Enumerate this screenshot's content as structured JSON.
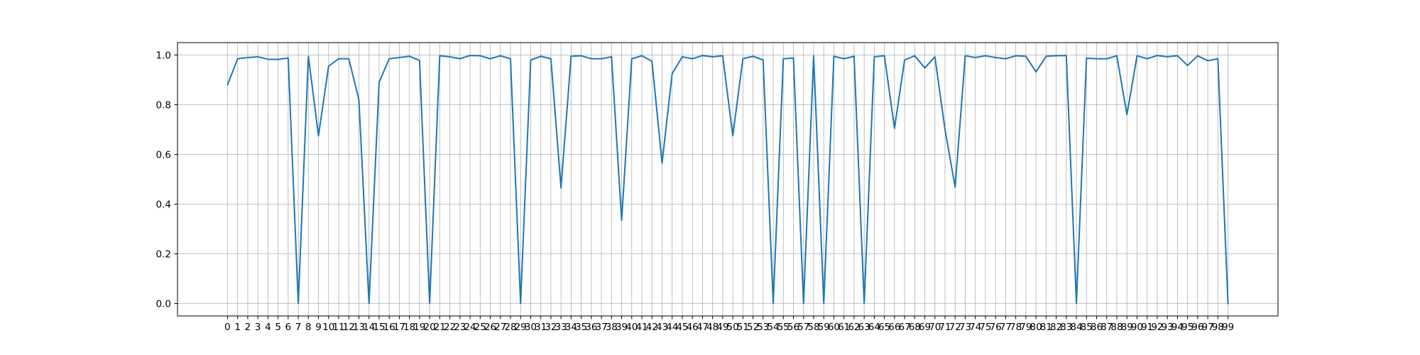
{
  "chart_data": {
    "type": "line",
    "title": "",
    "xlabel": "",
    "ylabel": "",
    "grid": true,
    "xlim": [
      -4.95,
      103.95
    ],
    "ylim": [
      -0.05,
      1.05
    ],
    "x": [
      0,
      1,
      2,
      3,
      4,
      5,
      6,
      7,
      8,
      9,
      10,
      11,
      12,
      13,
      14,
      15,
      16,
      17,
      18,
      19,
      20,
      21,
      22,
      23,
      24,
      25,
      26,
      27,
      28,
      29,
      30,
      31,
      32,
      33,
      34,
      35,
      36,
      37,
      38,
      39,
      40,
      41,
      42,
      43,
      44,
      45,
      46,
      47,
      48,
      49,
      50,
      51,
      52,
      53,
      54,
      55,
      56,
      57,
      58,
      59,
      60,
      61,
      62,
      63,
      64,
      65,
      66,
      67,
      68,
      69,
      70,
      71,
      72,
      73,
      74,
      75,
      76,
      77,
      78,
      79,
      80,
      81,
      82,
      83,
      84,
      85,
      86,
      87,
      88,
      89,
      90,
      91,
      92,
      93,
      94,
      95,
      96,
      97,
      98,
      99
    ],
    "x_tick_labels": [
      "0",
      "1",
      "2",
      "3",
      "4",
      "5",
      "6",
      "7",
      "8",
      "9",
      "10",
      "11",
      "12",
      "13",
      "14",
      "15",
      "16",
      "17",
      "18",
      "19",
      "20",
      "21",
      "22",
      "23",
      "24",
      "25",
      "26",
      "27",
      "28",
      "29",
      "30",
      "31",
      "32",
      "33",
      "34",
      "35",
      "36",
      "37",
      "38",
      "39",
      "40",
      "41",
      "42",
      "43",
      "44",
      "45",
      "46",
      "47",
      "48",
      "49",
      "50",
      "51",
      "52",
      "53",
      "54",
      "55",
      "56",
      "57",
      "58",
      "59",
      "60",
      "61",
      "62",
      "63",
      "64",
      "65",
      "66",
      "67",
      "68",
      "69",
      "70",
      "71",
      "72",
      "73",
      "74",
      "75",
      "76",
      "77",
      "78",
      "79",
      "80",
      "81",
      "82",
      "83",
      "84",
      "85",
      "86",
      "87",
      "88",
      "89",
      "90",
      "91",
      "92",
      "93",
      "94",
      "95",
      "96",
      "97",
      "98",
      "99"
    ],
    "y_ticks": [
      0.0,
      0.2,
      0.4,
      0.6,
      0.8,
      1.0
    ],
    "y_tick_labels": [
      "0.0",
      "0.2",
      "0.4",
      "0.6",
      "0.8",
      "1.0"
    ],
    "series": [
      {
        "color": "#1f77b4",
        "values": [
          0.88,
          0.985,
          0.99,
          0.993,
          0.983,
          0.982,
          0.988,
          0.0,
          0.995,
          0.675,
          0.955,
          0.985,
          0.985,
          0.82,
          0.0,
          0.89,
          0.985,
          0.99,
          0.995,
          0.978,
          0.0,
          0.997,
          0.993,
          0.985,
          0.998,
          0.997,
          0.985,
          0.997,
          0.985,
          0.0,
          0.98,
          0.995,
          0.985,
          0.465,
          0.995,
          0.997,
          0.985,
          0.985,
          0.993,
          0.335,
          0.985,
          0.997,
          0.975,
          0.565,
          0.925,
          0.993,
          0.985,
          0.998,
          0.993,
          0.997,
          0.675,
          0.985,
          0.995,
          0.98,
          0.0,
          0.985,
          0.988,
          0.0,
          0.997,
          0.0,
          0.995,
          0.985,
          0.995,
          0.0,
          0.993,
          0.997,
          0.705,
          0.98,
          0.997,
          0.948,
          0.993,
          0.7,
          0.468,
          0.997,
          0.99,
          0.997,
          0.99,
          0.985,
          0.997,
          0.995,
          0.932,
          0.995,
          0.997,
          0.998,
          0.0,
          0.987,
          0.985,
          0.985,
          0.997,
          0.76,
          0.997,
          0.985,
          0.998,
          0.993,
          0.997,
          0.958,
          0.997,
          0.977,
          0.985,
          0.0
        ]
      }
    ]
  }
}
